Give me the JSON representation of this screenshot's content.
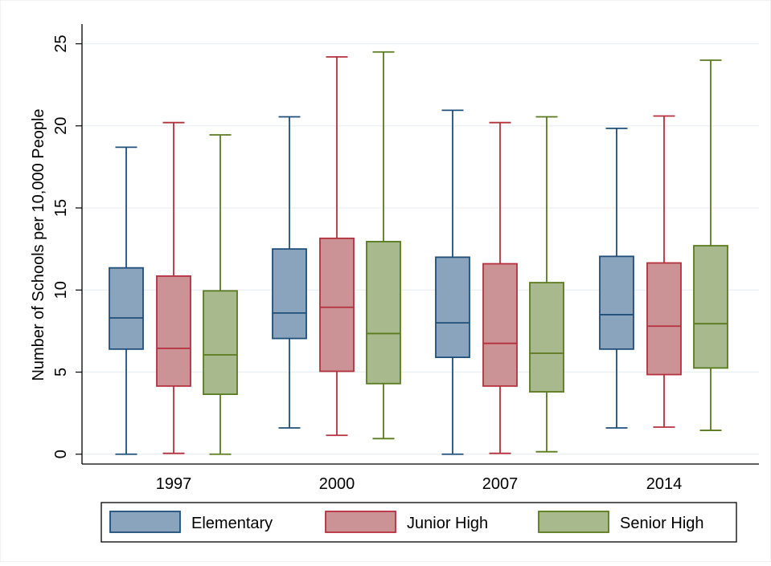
{
  "chart_data": {
    "type": "boxplot",
    "ylabel": "Number of Schools per 10,000 People",
    "xlabel": "",
    "ylim": [
      -0.6,
      26.2
    ],
    "yticks": [
      0,
      5,
      10,
      15,
      20,
      25
    ],
    "ytick_labels": [
      "0",
      "5",
      "10",
      "15",
      "20",
      "25"
    ],
    "grid": true,
    "legend_position": "bottom",
    "categories": [
      "1997",
      "2000",
      "2007",
      "2014"
    ],
    "series": [
      {
        "name": "Elementary",
        "color": "#8aa4bd",
        "stroke": "#1f4e79",
        "boxes": [
          {
            "whisker_low": 0.0,
            "q1": 6.4,
            "median": 8.3,
            "q3": 11.35,
            "whisker_high": 18.7
          },
          {
            "whisker_low": 1.6,
            "q1": 7.05,
            "median": 8.6,
            "q3": 12.5,
            "whisker_high": 20.55
          },
          {
            "whisker_low": 0.0,
            "q1": 5.9,
            "median": 8.0,
            "q3": 12.0,
            "whisker_high": 20.95
          },
          {
            "whisker_low": 1.6,
            "q1": 6.4,
            "median": 8.5,
            "q3": 12.05,
            "whisker_high": 19.85
          }
        ]
      },
      {
        "name": "Junior High",
        "color": "#cc9397",
        "stroke": "#b5303d",
        "boxes": [
          {
            "whisker_low": 0.05,
            "q1": 4.15,
            "median": 6.45,
            "q3": 10.85,
            "whisker_high": 20.2
          },
          {
            "whisker_low": 1.15,
            "q1": 5.05,
            "median": 8.95,
            "q3": 13.15,
            "whisker_high": 24.2
          },
          {
            "whisker_low": 0.05,
            "q1": 4.15,
            "median": 6.75,
            "q3": 11.6,
            "whisker_high": 20.2
          },
          {
            "whisker_low": 1.65,
            "q1": 4.85,
            "median": 7.8,
            "q3": 11.65,
            "whisker_high": 20.6
          }
        ]
      },
      {
        "name": "Senior High",
        "color": "#a8b98e",
        "stroke": "#5a7a1e",
        "boxes": [
          {
            "whisker_low": 0.0,
            "q1": 3.65,
            "median": 6.05,
            "q3": 9.95,
            "whisker_high": 19.45
          },
          {
            "whisker_low": 0.95,
            "q1": 4.3,
            "median": 7.35,
            "q3": 12.95,
            "whisker_high": 24.5
          },
          {
            "whisker_low": 0.15,
            "q1": 3.8,
            "median": 6.15,
            "q3": 10.45,
            "whisker_high": 20.55
          },
          {
            "whisker_low": 1.45,
            "q1": 5.25,
            "median": 7.95,
            "q3": 12.7,
            "whisker_high": 24.0
          }
        ]
      }
    ]
  }
}
